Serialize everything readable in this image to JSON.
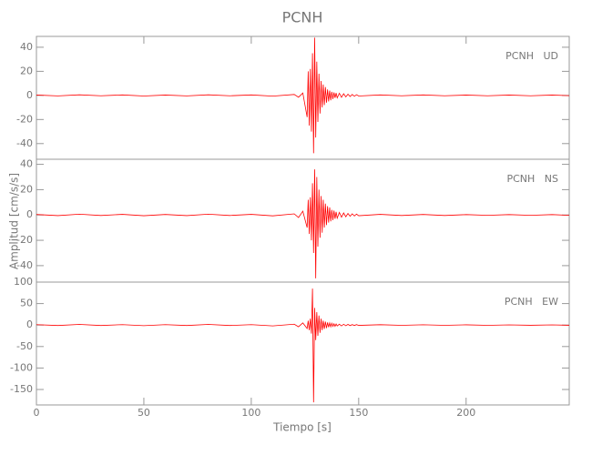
{
  "chart_data": {
    "type": "line",
    "title": "PCNH",
    "xlabel": "Tiempo [s]",
    "ylabel": "Amplitud [cm/s/s]",
    "xlim": [
      0,
      248
    ],
    "xticks": [
      0,
      50,
      100,
      150,
      200
    ],
    "x": [
      0,
      10,
      20,
      30,
      40,
      50,
      60,
      70,
      80,
      90,
      100,
      110,
      120,
      122,
      124,
      126,
      126.5,
      127,
      127.5,
      128,
      128.5,
      129,
      129.5,
      130,
      130.5,
      131,
      131.5,
      132,
      132.5,
      133,
      133.5,
      134,
      134.5,
      135,
      135.5,
      136,
      136.5,
      137,
      137.5,
      138,
      138.5,
      139,
      139.5,
      140,
      141,
      142,
      143,
      144,
      145,
      146,
      147,
      148,
      149,
      150,
      160,
      170,
      180,
      190,
      200,
      210,
      220,
      230,
      240,
      248
    ],
    "panels": [
      {
        "annotation": "PCNH   UD",
        "color": "#ff0000",
        "ylim": [
          -53,
          49
        ],
        "yticks": [
          -40,
          -20,
          0,
          20,
          40
        ],
        "values": [
          0.3,
          -0.4,
          0.5,
          -0.3,
          0.4,
          -0.5,
          0.3,
          -0.4,
          0.5,
          -0.3,
          0.4,
          -0.6,
          0.8,
          -1.5,
          2,
          -18,
          20,
          -25,
          22,
          -30,
          35,
          -48,
          48,
          -35,
          28,
          -22,
          18,
          -15,
          12,
          -10,
          9,
          -8,
          7,
          -6,
          5,
          -5,
          4,
          -4,
          3,
          -3,
          2.5,
          -2,
          2,
          -2,
          1.8,
          -1.6,
          1.4,
          -1.2,
          1,
          -0.9,
          0.8,
          -0.7,
          0.6,
          -0.5,
          0.4,
          -0.3,
          0.4,
          -0.3,
          0.3,
          -0.3,
          0.3,
          -0.3,
          0.3,
          -0.2
        ]
      },
      {
        "annotation": "PCNH   NS",
        "color": "#ff0000",
        "ylim": [
          -53,
          44
        ],
        "yticks": [
          -40,
          -20,
          0,
          20,
          40
        ],
        "values": [
          0.4,
          -0.5,
          0.6,
          -0.4,
          0.5,
          -0.6,
          0.4,
          -0.5,
          0.6,
          -0.4,
          0.5,
          -0.7,
          0.9,
          -2,
          3,
          -10,
          12,
          -15,
          14,
          -20,
          25,
          -30,
          36,
          -50,
          30,
          -25,
          20,
          -18,
          15,
          -14,
          12,
          -10,
          9,
          -8,
          7,
          -6,
          6,
          -5,
          4,
          -4,
          3.5,
          -3,
          2.5,
          -2.5,
          2,
          -1.8,
          1.6,
          -1.4,
          1.2,
          -1,
          0.9,
          -0.8,
          0.7,
          -0.6,
          0.5,
          -0.4,
          0.4,
          -0.4,
          0.3,
          -0.3,
          0.3,
          -0.3,
          0.3,
          -0.3
        ]
      },
      {
        "annotation": "PCNH   EW",
        "color": "#ff0000",
        "ylim": [
          -186,
          100
        ],
        "yticks": [
          -150,
          -100,
          -50,
          0,
          50,
          100
        ],
        "values": [
          1,
          -1,
          1.5,
          -1,
          1,
          -1.5,
          1,
          -1,
          1.5,
          -1,
          1,
          -2,
          2,
          -4,
          5,
          -8,
          10,
          -12,
          15,
          -20,
          85,
          -180,
          40,
          -35,
          30,
          -25,
          22,
          -18,
          15,
          -12,
          10,
          -9,
          8,
          -7,
          6,
          -5,
          5,
          -4,
          4,
          -3,
          3,
          -3,
          2.5,
          -2,
          2,
          -2,
          1.8,
          -1.5,
          1.5,
          -1.2,
          1,
          -1,
          1,
          -0.8,
          0.8,
          -0.7,
          0.7,
          -0.6,
          0.6,
          -0.6,
          0.5,
          -0.5,
          0.5,
          -0.5
        ]
      }
    ]
  }
}
